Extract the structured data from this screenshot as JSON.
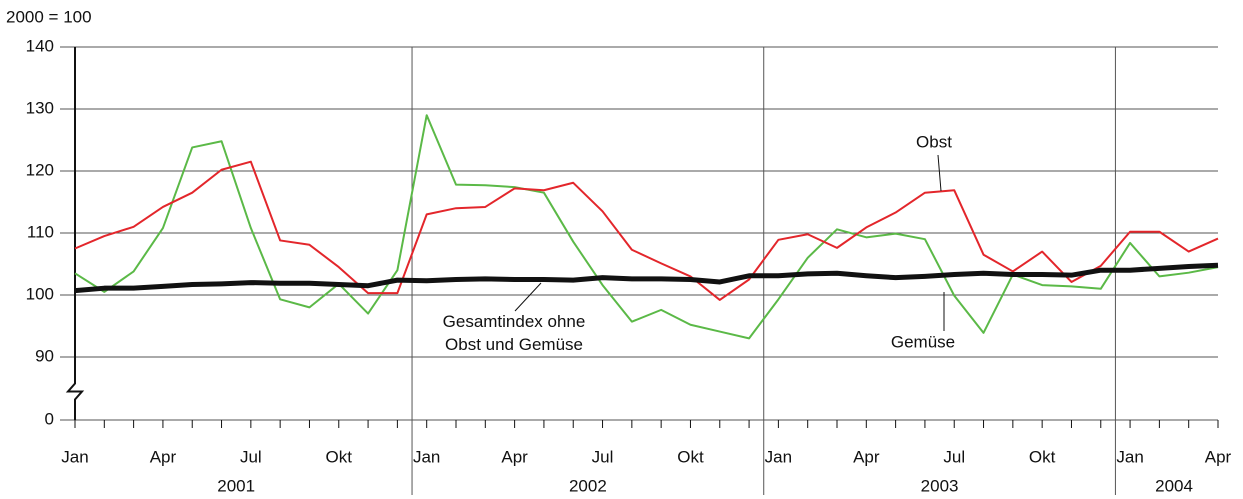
{
  "chart_data": {
    "type": "line",
    "y_label": "2000 = 100",
    "categories": [
      "Jan",
      null,
      null,
      "Apr",
      null,
      null,
      "Jul",
      null,
      null,
      "Okt",
      null,
      null,
      "Jan",
      null,
      null,
      "Apr",
      null,
      null,
      "Jul",
      null,
      null,
      "Okt",
      null,
      null,
      "Jan",
      null,
      null,
      "Apr",
      null,
      null,
      "Jul",
      null,
      null,
      "Okt",
      null,
      null,
      "Jan",
      null,
      null,
      "Apr"
    ],
    "year_labels": [
      "2001",
      "2002",
      "2003",
      "2004"
    ],
    "ylim": [
      0,
      140
    ],
    "ybreak": [
      0,
      90
    ],
    "yticks": [
      0,
      90,
      100,
      110,
      120,
      130,
      140
    ],
    "grid": true,
    "series": [
      {
        "name": "Obst",
        "color": "#e3262b",
        "width": 2,
        "values": [
          107.5,
          109.5,
          111,
          114.2,
          116.5,
          120.2,
          121.5,
          108.8,
          108.1,
          104.5,
          100.3,
          100.3,
          113,
          114,
          114.2,
          117.2,
          116.9,
          118.1,
          113.5,
          107.3,
          105.1,
          103,
          99.2,
          102.5,
          108.9,
          109.8,
          107.6,
          110.9,
          113.3,
          116.5,
          116.9,
          106.5,
          103.8,
          107,
          102.1,
          104.7,
          110.2,
          110.2,
          107,
          109.1
        ]
      },
      {
        "name": "Gemüse",
        "color": "#5bb947",
        "width": 2,
        "values": [
          103.5,
          100.5,
          103.8,
          110.8,
          123.8,
          124.8,
          110.8,
          99.3,
          98,
          101.8,
          97,
          104,
          129,
          117.8,
          117.7,
          117.4,
          116.5,
          108.6,
          101.6,
          95.7,
          97.6,
          95.2,
          94.1,
          93,
          99.3,
          106,
          110.6,
          109.3,
          109.9,
          109,
          99.9,
          93.9,
          103.3,
          101.6,
          101.4,
          101,
          108.4,
          103,
          103.6,
          104.5
        ]
      },
      {
        "name": "Gesamtindex ohne Obst und Gemüse",
        "color": "#111111",
        "width": 5,
        "values": [
          100.7,
          101.1,
          101.1,
          101.4,
          101.7,
          101.8,
          102,
          101.9,
          101.9,
          101.7,
          101.5,
          102.4,
          102.3,
          102.5,
          102.6,
          102.5,
          102.5,
          102.4,
          102.8,
          102.6,
          102.6,
          102.5,
          102.1,
          103.1,
          103.1,
          103.4,
          103.5,
          103.1,
          102.8,
          103,
          103.3,
          103.5,
          103.3,
          103.3,
          103.2,
          104,
          104,
          104.3,
          104.6,
          104.8
        ]
      }
    ]
  }
}
